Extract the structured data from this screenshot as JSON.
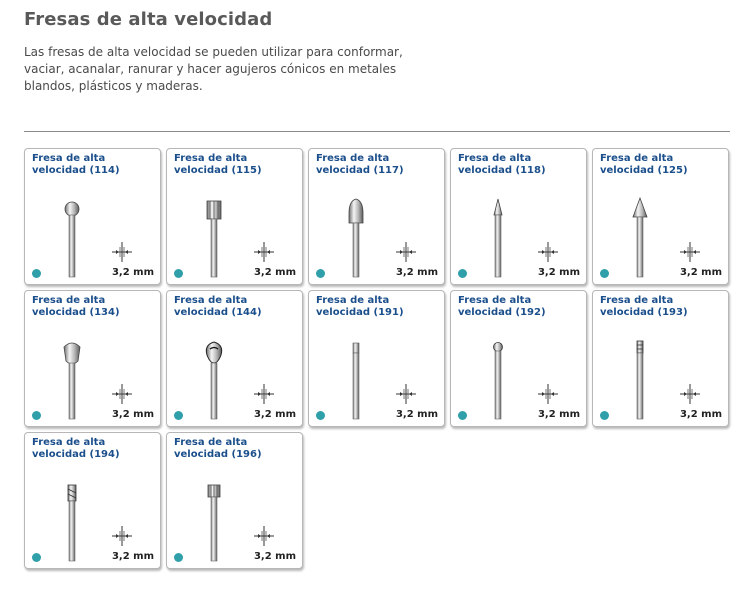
{
  "header": {
    "title": "Fresas de alta velocidad",
    "description": "Las fresas de alta velocidad se pueden utilizar para conformar, vaciar, acanalar, ranurar y hacer agujeros cónicos en metales blandos, plásticos y maderas."
  },
  "colors": {
    "title_link": "#1b4f8c",
    "dot": "#2f9faa",
    "border": "#b7b7b7"
  },
  "products": [
    {
      "title": "Fresa de alta velocidad (114)",
      "shank": "3,2 mm",
      "head": "ball-cutter"
    },
    {
      "title": "Fresa de alta velocidad (115)",
      "shank": "3,2 mm",
      "head": "cylinder-cutter"
    },
    {
      "title": "Fresa de alta velocidad (117)",
      "shank": "3,2 mm",
      "head": "bullet-cutter"
    },
    {
      "title": "Fresa de alta velocidad (118)",
      "shank": "3,2 mm",
      "head": "narrow-cone-cutter"
    },
    {
      "title": "Fresa de alta velocidad (125)",
      "shank": "3,2 mm",
      "head": "wide-cone-cutter"
    },
    {
      "title": "Fresa de alta velocidad (134)",
      "shank": "3,2 mm",
      "head": "oval-cutter"
    },
    {
      "title": "Fresa de alta velocidad (144)",
      "shank": "3,2 mm",
      "head": "teardrop-cutter"
    },
    {
      "title": "Fresa de alta velocidad (191)",
      "shank": "3,2 mm",
      "head": "slim-end-cutter"
    },
    {
      "title": "Fresa de alta velocidad (192)",
      "shank": "3,2 mm",
      "head": "small-ball-cutter"
    },
    {
      "title": "Fresa de alta velocidad (193)",
      "shank": "3,2 mm",
      "head": "tiny-cutter"
    },
    {
      "title": "Fresa de alta velocidad (194)",
      "shank": "3,2 mm",
      "head": "fluted-end-cutter"
    },
    {
      "title": "Fresa de alta velocidad (196)",
      "shank": "3,2 mm",
      "head": "small-cylinder-cutter"
    }
  ]
}
